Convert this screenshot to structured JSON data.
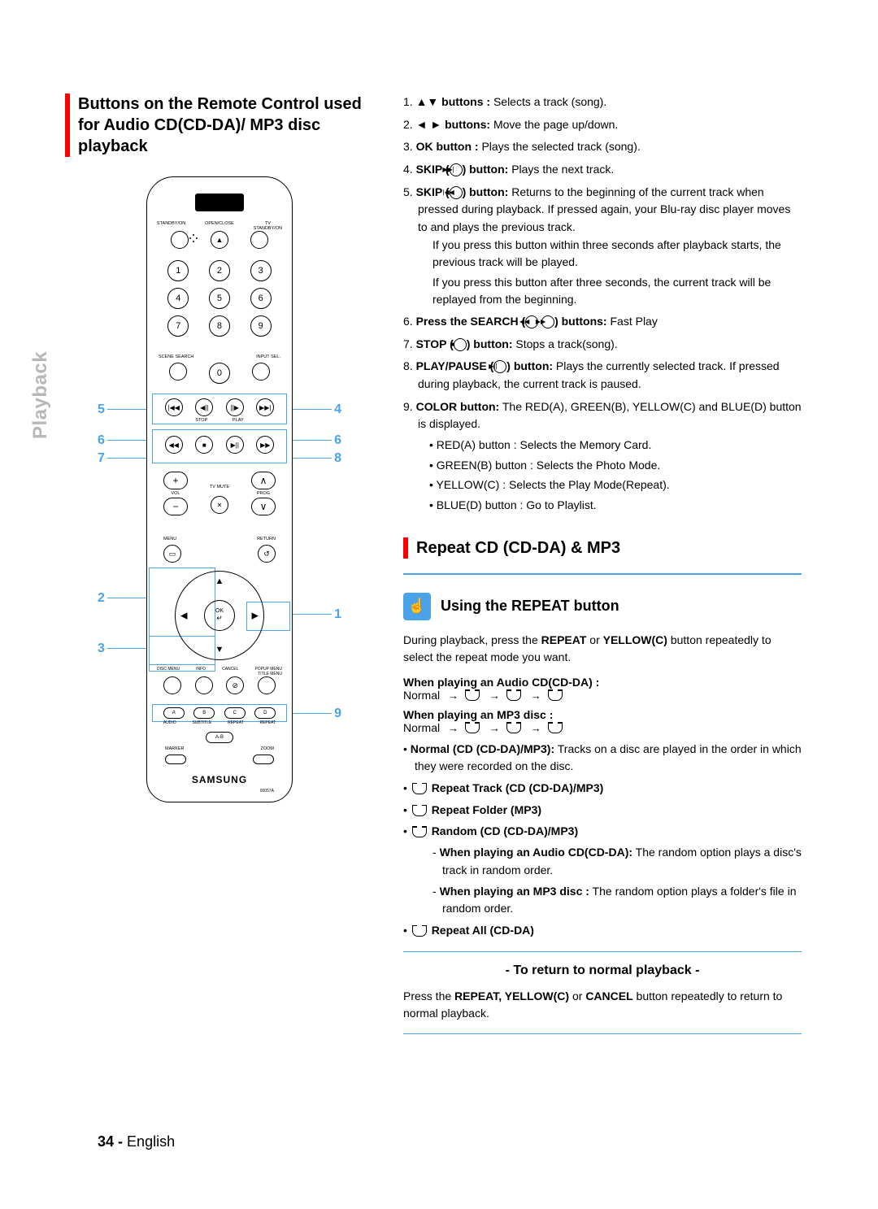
{
  "side_tab": "Playback",
  "left": {
    "title": "Buttons on the Remote Control used for Audio CD(CD-DA)/ MP3 disc playback",
    "remote": {
      "top_labels": [
        "STANDBY/ON",
        "OPEN/CLOSE",
        "TV\nSTANDBY/ON"
      ],
      "numbers": [
        "1",
        "2",
        "3",
        "4",
        "5",
        "6",
        "7",
        "8",
        "9",
        "0"
      ],
      "scene_labels": [
        "SCENE SEARCH",
        "INPUT SEL."
      ],
      "stop_play": [
        "STOP",
        "PLAY"
      ],
      "tvmute": "TV MUTE",
      "vol": "VOL",
      "prog": "PROG",
      "menu_labels": [
        "MENU",
        "RETURN"
      ],
      "ok": "OK",
      "disc_labels": [
        "DISC MENU",
        "INFO",
        "CANCEL",
        "POPUP MENU\nTITLE MENU"
      ],
      "color_letters": [
        "A",
        "B",
        "C",
        "D"
      ],
      "color_small": [
        "AUDIO",
        "SUBTITLE",
        "REPEAT",
        "REPEAT"
      ],
      "ab": "A-B",
      "marker_labels": [
        "MARKER",
        "ZOOM"
      ],
      "brand": "SAMSUNG",
      "serial": "00057A"
    },
    "callouts": {
      "n1": "1",
      "n2": "2",
      "n3": "3",
      "n4": "4",
      "n5": "5",
      "n6l": "6",
      "n6r": "6",
      "n7": "7",
      "n8": "8",
      "n9": "9"
    }
  },
  "right": {
    "list": [
      {
        "n": "1.",
        "bold": "▲▼ buttons :",
        "text": " Selects a track (song)."
      },
      {
        "n": "2.",
        "bold": "◄ ► buttons:",
        "text": " Move the page up/down."
      },
      {
        "n": "3.",
        "bold": "OK button :",
        "text": " Plays the selected track (song)."
      },
      {
        "n": "4.",
        "bold_pre": "SKIP (",
        "icon": "▶▶|",
        "bold_post": ") button:",
        "text": " Plays the next track."
      },
      {
        "n": "5.",
        "bold_pre": "SKIP (",
        "icon": "|◀◀",
        "bold_post": ") button:",
        "text": " Returns to the beginning of the current track when pressed during playback. If pressed again, your Blu-ray disc player moves to and plays the previous track.",
        "extra": [
          "If you press this button within three seconds after playback starts, the previous track will be played.",
          "If you press this button after three seconds, the current track will be replayed from the beginning."
        ]
      },
      {
        "n": "6.",
        "bold_pre": "Press the SEARCH (",
        "icon2": "◀◀  ▶▶",
        "bold_post": ") buttons:",
        "text": " Fast Play"
      },
      {
        "n": "7.",
        "bold_pre": "STOP (",
        "icon": "■",
        "bold_post": ") button:",
        "text": " Stops a track(song)."
      },
      {
        "n": "8.",
        "bold_pre": "PLAY/PAUSE (",
        "icon": "▶||",
        "bold_post": ") button:",
        "text": " Plays the currently selected track. If pressed during playback, the current track is paused."
      },
      {
        "n": "9.",
        "bold": "COLOR button:",
        "text": " The RED(A), GREEN(B), YELLOW(C) and BLUE(D) button is displayed.",
        "subs": [
          "RED(A) button : Selects the Memory Card.",
          "GREEN(B) button : Selects the Photo Mode.",
          "YELLOW(C) : Selects the Play Mode(Repeat).",
          "BLUE(D) button : Go to Playlist."
        ]
      }
    ],
    "section2_title": "Repeat CD (CD-DA) & MP3",
    "sub_heading": "Using the REPEAT button",
    "intro": "During playback, press the REPEAT or YELLOW(C) button repeatedly to select the repeat mode you want.",
    "when_cd": "When playing an Audio CD(CD-DA) :",
    "when_cd_seq": "Normal",
    "when_mp3": "When playing an MP3 disc :",
    "when_mp3_seq": "Normal",
    "bullets": [
      {
        "bold": "Normal (CD (CD-DA)/MP3):",
        "text": " Tracks on a disc are played in the order in which they were recorded on the disc."
      },
      {
        "icon": true,
        "bold": "Repeat Track (CD (CD-DA)/MP3)"
      },
      {
        "icon": true,
        "bold": "Repeat Folder (MP3)"
      },
      {
        "icon": true,
        "bold": "Random (CD (CD-DA)/MP3)",
        "subs": [
          {
            "bold": "When playing an Audio CD(CD-DA):",
            "text": " The random option plays a disc's track in random order."
          },
          {
            "bold": "When playing an MP3 disc :",
            "text": " The random option plays a folder's file in random order."
          }
        ]
      },
      {
        "icon": true,
        "bold": "Repeat All (CD-DA)"
      }
    ],
    "return_head": "- To return to normal playback -",
    "return_text_pre": "Press the ",
    "return_text_bold": "REPEAT, YELLOW(C)",
    "return_text_mid": " or ",
    "return_text_bold2": "CANCEL",
    "return_text_post": " button repeatedly to return to normal playback."
  },
  "footer": {
    "page": "34 -",
    "lang": "English"
  }
}
